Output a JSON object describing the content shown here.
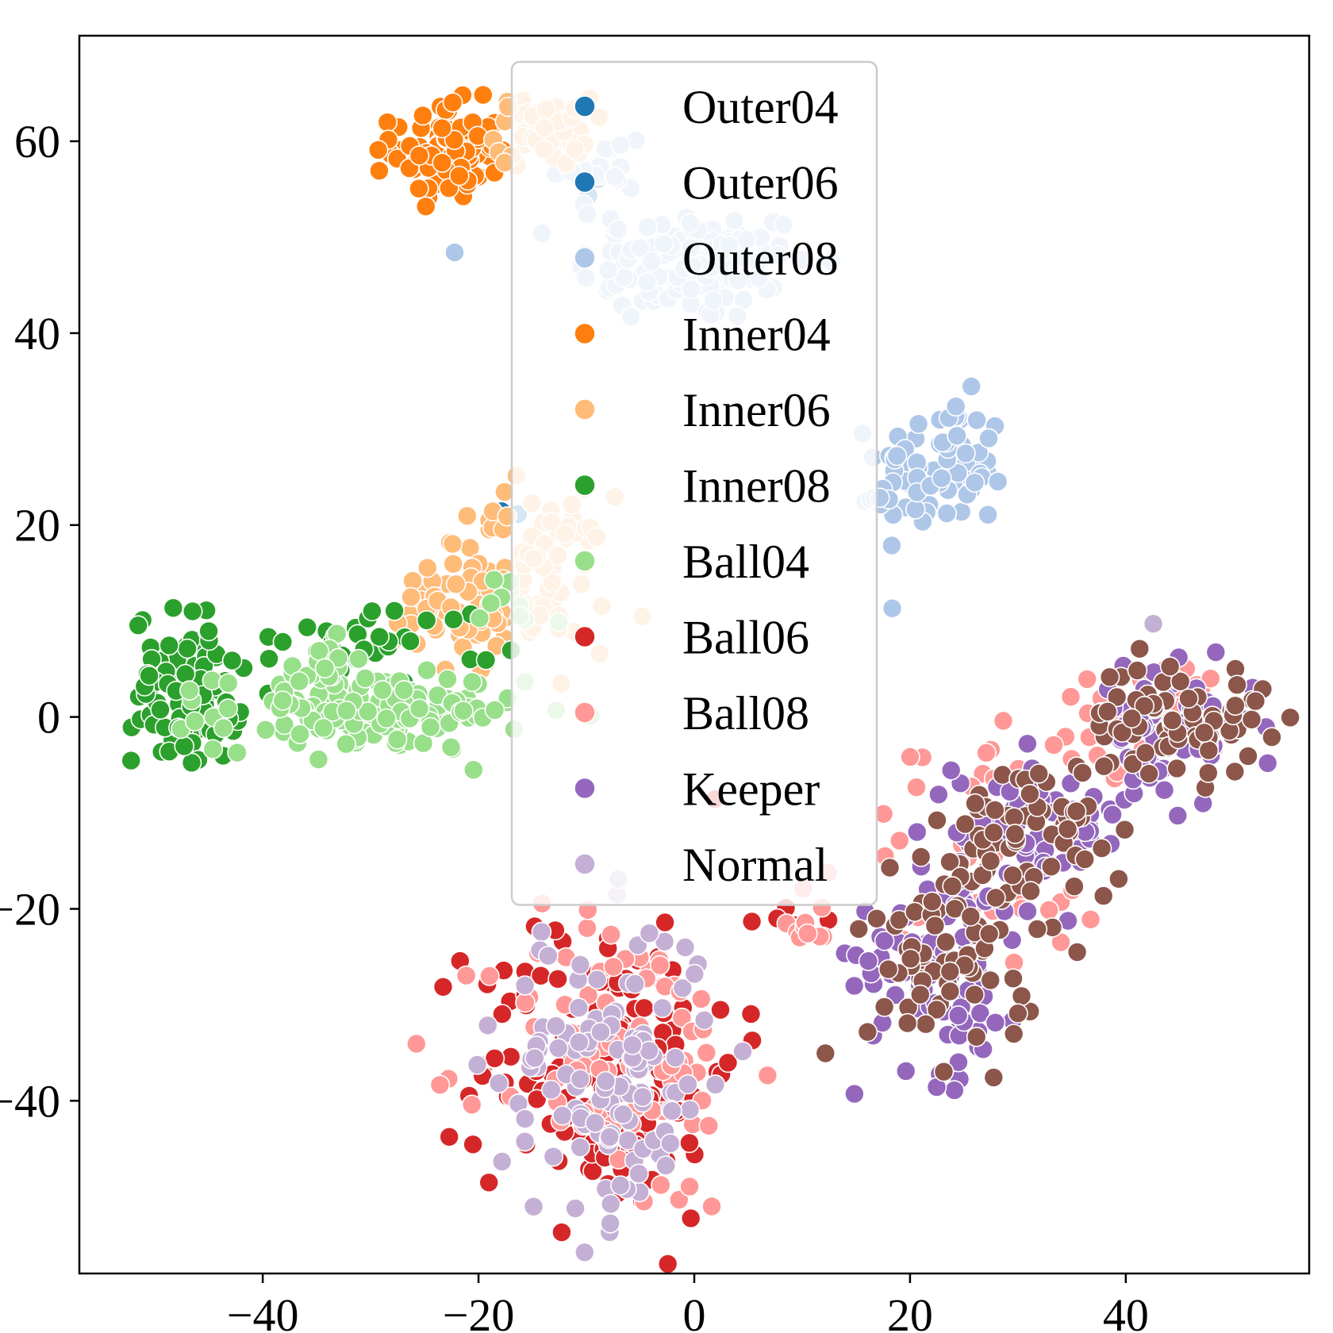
{
  "chart_data": {
    "type": "scatter",
    "title": "",
    "xlabel": "",
    "ylabel": "",
    "xlim": [
      -57,
      57
    ],
    "ylim": [
      -58,
      71
    ],
    "xticks": [
      -40,
      -20,
      0,
      20,
      40
    ],
    "yticks": [
      -40,
      -20,
      0,
      20,
      40,
      60
    ],
    "xtick_labels": [
      "−40",
      "−20",
      "0",
      "20",
      "40"
    ],
    "ytick_labels": [
      "−40",
      "−20",
      "0",
      "20",
      "40",
      "60"
    ],
    "grid": false,
    "legend": {
      "placement": "upper-center"
    },
    "series": [
      {
        "name": "Outer04",
        "color": "#1f77b4",
        "clusters": [
          {
            "cx": -18,
            "cy": 21.5,
            "sx": 0.6,
            "sy": 0.5,
            "n": 3
          }
        ]
      },
      {
        "name": "Outer06",
        "color": "#1f77b4",
        "clusters": [
          {
            "cx": -10,
            "cy": 55,
            "sx": 0.8,
            "sy": 0.8,
            "n": 2
          }
        ]
      },
      {
        "name": "Outer08",
        "color": "#aec7e8",
        "clusters": [
          {
            "cx": 0,
            "cy": 47,
            "sx": 5.5,
            "sy": 3.0,
            "n": 120
          },
          {
            "cx": -9,
            "cy": 56,
            "sx": 2.5,
            "sy": 3.0,
            "n": 20
          },
          {
            "cx": 23,
            "cy": 26,
            "sx": 3.0,
            "sy": 3.5,
            "n": 80
          },
          {
            "cx": 17,
            "cy": 23,
            "sx": 1.0,
            "sy": 1.0,
            "n": 6
          }
        ]
      },
      {
        "name": "Inner04",
        "color": "#ff7f0e",
        "clusters": [
          {
            "cx": -23,
            "cy": 59,
            "sx": 2.5,
            "sy": 2.5,
            "n": 90
          }
        ]
      },
      {
        "name": "Inner06",
        "color": "#ffbb78",
        "clusters": [
          {
            "cx": -14,
            "cy": 61,
            "sx": 2.2,
            "sy": 1.8,
            "n": 50
          },
          {
            "cx": -16,
            "cy": 15,
            "sx": 4.0,
            "sy": 4.0,
            "n": 100
          },
          {
            "cx": -22,
            "cy": 10,
            "sx": 4.0,
            "sy": 3.0,
            "n": 40
          }
        ]
      },
      {
        "name": "Inner08",
        "color": "#2ca02c",
        "clusters": [
          {
            "cx": -47,
            "cy": 3,
            "sx": 2.5,
            "sy": 4.0,
            "n": 90
          },
          {
            "cx": -28,
            "cy": 8,
            "sx": 5.0,
            "sy": 2.0,
            "n": 30
          }
        ]
      },
      {
        "name": "Ball04",
        "color": "#98df8a",
        "clusters": [
          {
            "cx": -30,
            "cy": 0.5,
            "sx": 7.0,
            "sy": 2.0,
            "n": 150
          },
          {
            "cx": -35,
            "cy": 5,
            "sx": 2.0,
            "sy": 1.5,
            "n": 15
          },
          {
            "cx": -17,
            "cy": 10,
            "sx": 2.0,
            "sy": 3.0,
            "n": 10
          }
        ]
      },
      {
        "name": "Ball06",
        "color": "#d62728",
        "clusters": [
          {
            "cx": -8,
            "cy": -36,
            "sx": 6.0,
            "sy": 8.0,
            "n": 150
          },
          {
            "cx": 8,
            "cy": -21,
            "sx": 2.0,
            "sy": 0.7,
            "n": 6
          }
        ]
      },
      {
        "name": "Ball08",
        "color": "#ff9896",
        "clusters": [
          {
            "cx": -7,
            "cy": -36,
            "sx": 6.0,
            "sy": 8.0,
            "n": 90
          },
          {
            "cx": 11,
            "cy": -21,
            "sx": 1.5,
            "sy": 1.5,
            "n": 10
          },
          {
            "cx": 27,
            "cy": -15,
            "sx": 6.0,
            "sy": 7.0,
            "n": 40
          },
          {
            "cx": 42,
            "cy": 0,
            "sx": 5.0,
            "sy": 3.0,
            "n": 30
          }
        ]
      },
      {
        "name": "Keeper",
        "color": "#9467bd",
        "clusters": [
          {
            "cx": 23,
            "cy": -25,
            "sx": 4.0,
            "sy": 6.0,
            "n": 90
          },
          {
            "cx": 32,
            "cy": -12,
            "sx": 4.0,
            "sy": 4.0,
            "n": 60
          },
          {
            "cx": 44,
            "cy": -1,
            "sx": 4.0,
            "sy": 3.0,
            "n": 70
          }
        ]
      },
      {
        "name": "Normal",
        "color": "#c5b0d5",
        "clusters": [
          {
            "cx": -8,
            "cy": -37,
            "sx": 5.0,
            "sy": 8.0,
            "n": 130
          },
          {
            "cx": 42.5,
            "cy": 9.5,
            "sx": 0.3,
            "sy": 0.3,
            "n": 1
          }
        ]
      },
      {
        "name": "",
        "color": "#8c564b",
        "clusters": [
          {
            "cx": 24,
            "cy": -24,
            "sx": 4.0,
            "sy": 6.0,
            "n": 80
          },
          {
            "cx": 32,
            "cy": -12,
            "sx": 4.0,
            "sy": 4.0,
            "n": 60
          },
          {
            "cx": 45,
            "cy": 0,
            "sx": 4.0,
            "sy": 3.0,
            "n": 70
          }
        ]
      }
    ]
  }
}
